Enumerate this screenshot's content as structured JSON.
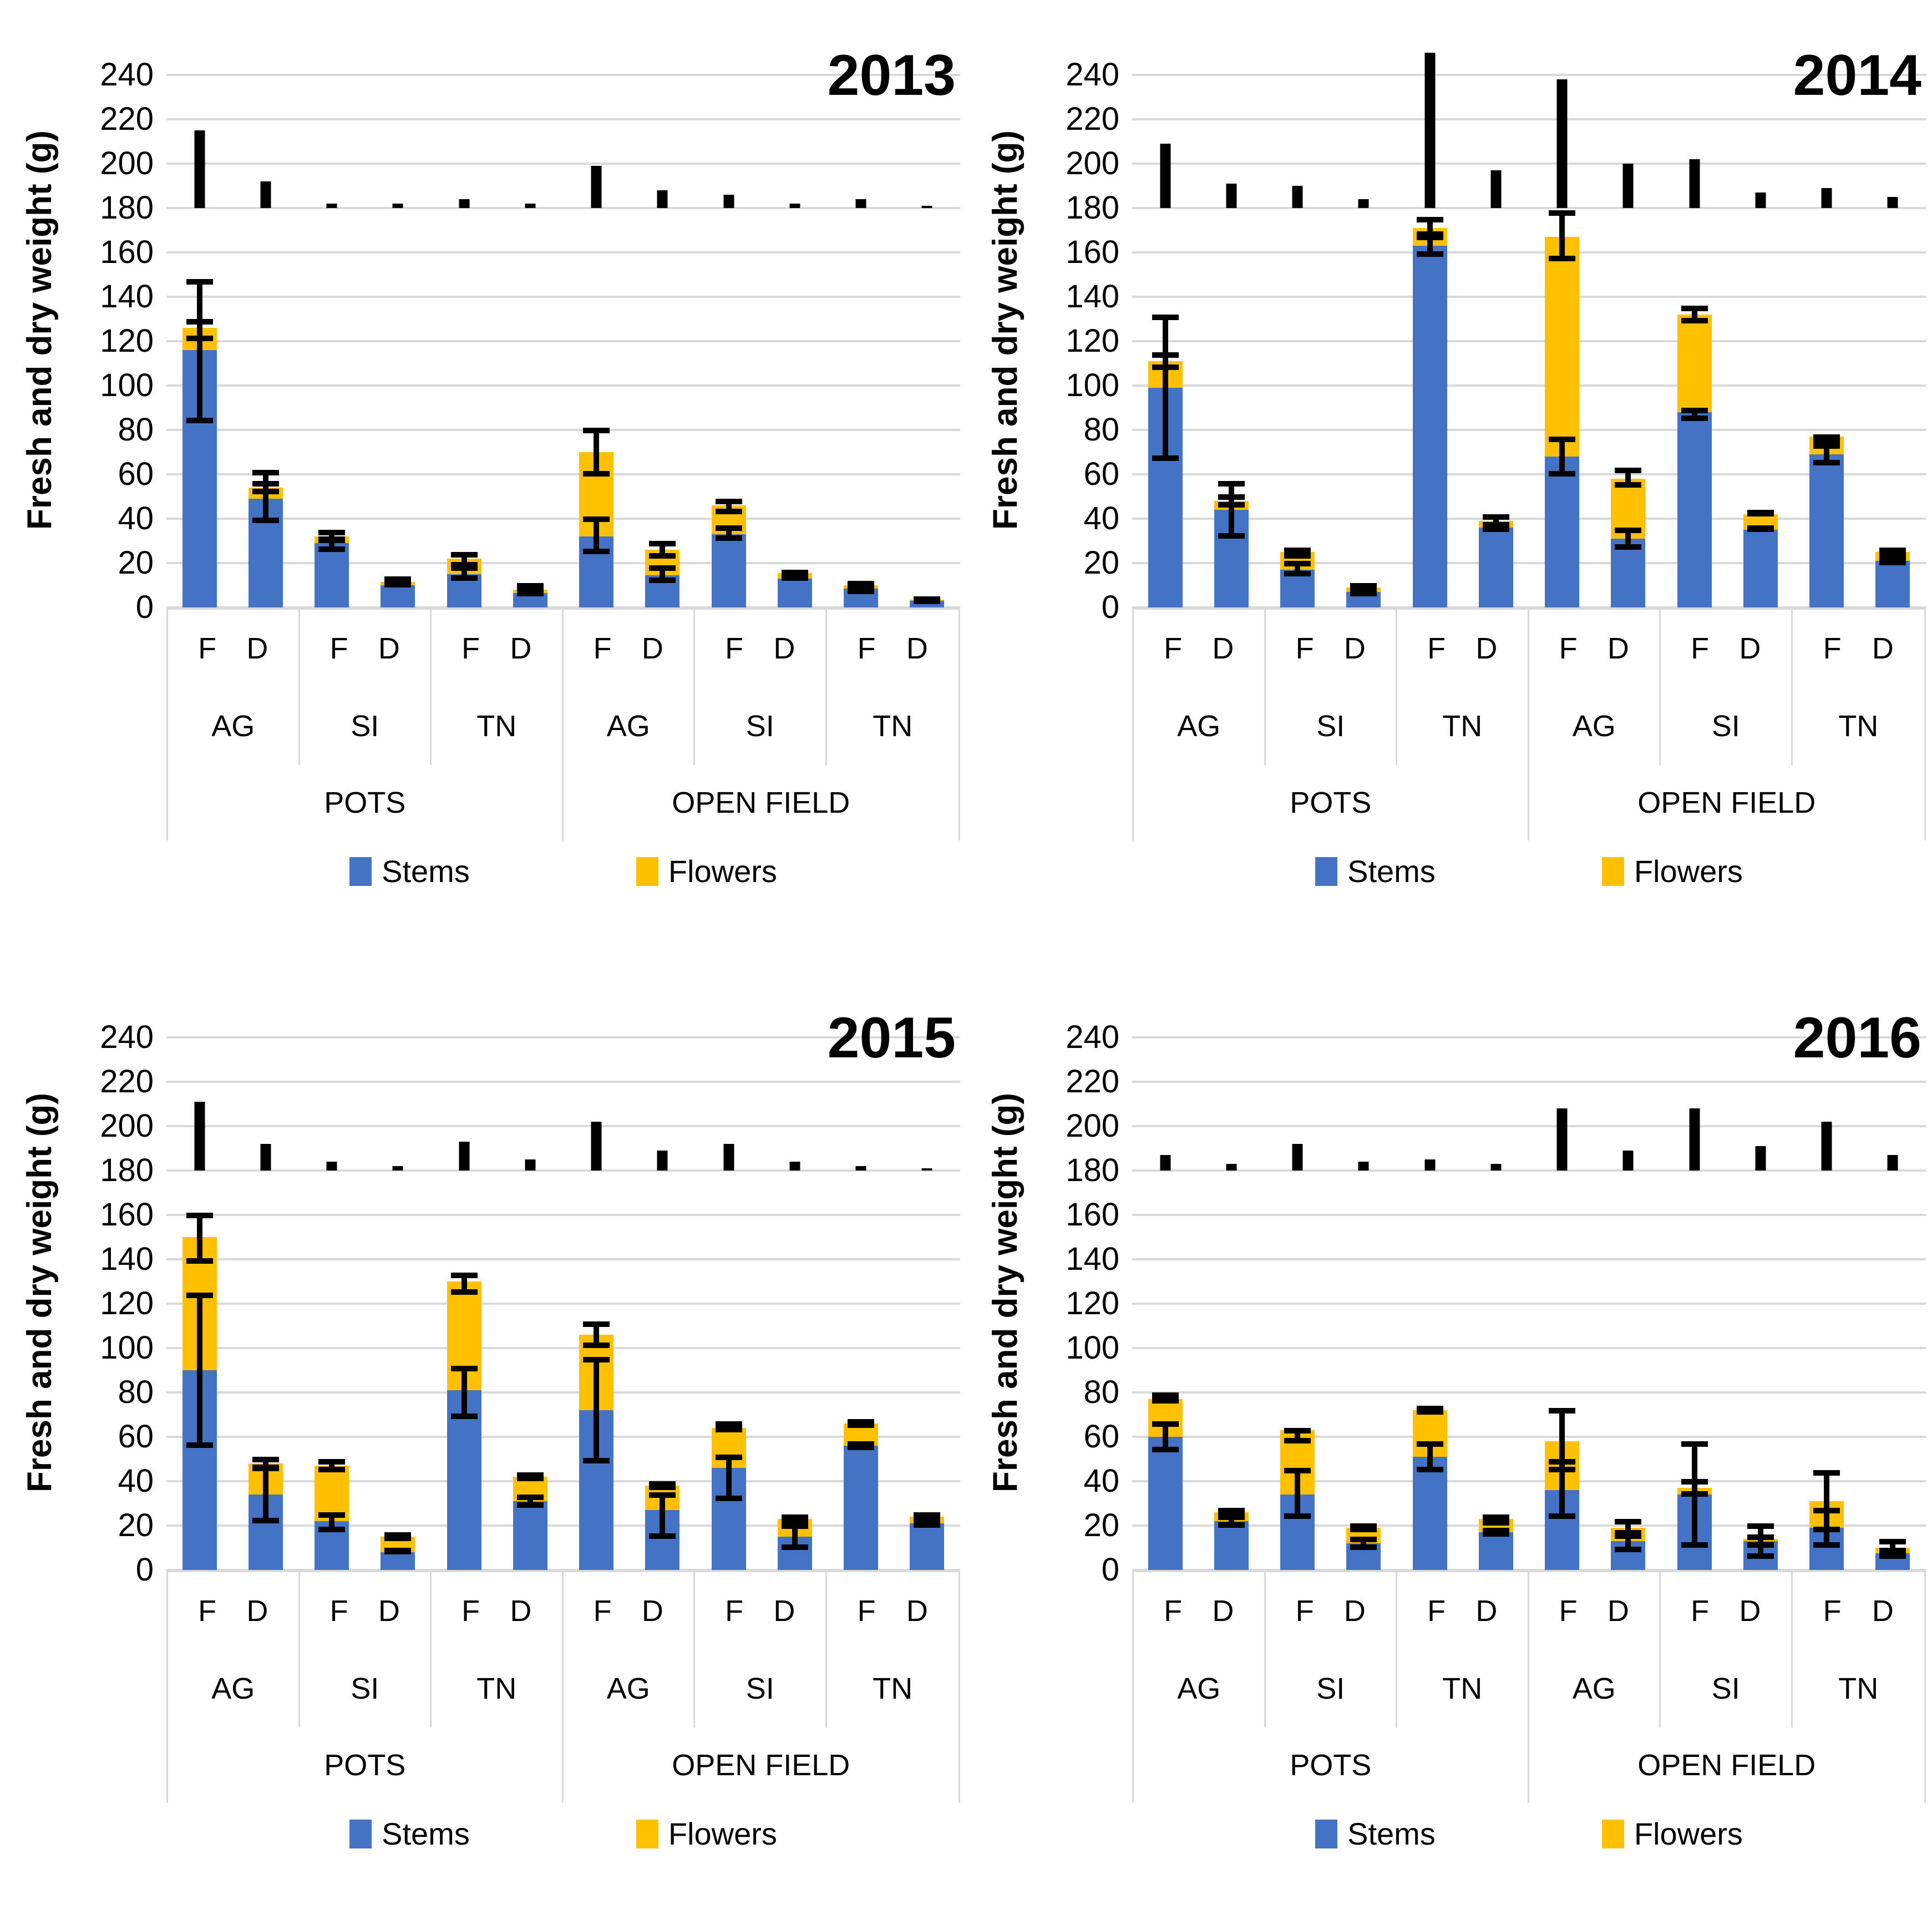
{
  "colors": {
    "stems": "#4472C4",
    "flowers": "#FFC000",
    "error_bar": "#000000",
    "marker": "#000000",
    "gridline": "#D9D9D9",
    "text": "#000000"
  },
  "y_axis": {
    "title": "Fresh and dry weight (g)",
    "min": 0,
    "max": 240,
    "step": 20,
    "plot_top_units": 250,
    "marker_baseline": 180
  },
  "x_axis": {
    "fd_labels": [
      "F",
      "D"
    ],
    "varieties": [
      "AG",
      "SI",
      "TN"
    ],
    "environments": [
      "POTS",
      "OPEN FIELD"
    ]
  },
  "legend": {
    "items": [
      {
        "label": "Stems",
        "color_key": "stems"
      },
      {
        "label": "Flowers",
        "color_key": "flowers"
      }
    ]
  },
  "chart_data": {
    "type": "bar",
    "subtype": "stacked-vertical-with-error-bars",
    "unit": "g",
    "series_names": [
      "Stems",
      "Flowers"
    ],
    "note_marker_series": "black tick marks rising from 180 g baseline above each bar",
    "panels": [
      {
        "year": "2013",
        "bars": [
          {
            "env": "POTS",
            "variety": "AG",
            "fd": "F",
            "stems": 116,
            "flowers": 10,
            "stems_err": [
              83,
              148
            ],
            "total_err": [
              120,
              130
            ],
            "marker": 215
          },
          {
            "env": "POTS",
            "variety": "AG",
            "fd": "D",
            "stems": 49,
            "flowers": 5,
            "stems_err": [
              38,
              62
            ],
            "total_err": [
              51,
              57
            ],
            "marker": 192
          },
          {
            "env": "POTS",
            "variety": "SI",
            "fd": "F",
            "stems": 29,
            "flowers": 3,
            "stems_err": [
              25,
              32
            ],
            "total_err": [
              29,
              35
            ],
            "marker": 182
          },
          {
            "env": "POTS",
            "variety": "SI",
            "fd": "D",
            "stems": 10,
            "flowers": 1.5,
            "stems_err": [
              9,
              12
            ],
            "total_err": [
              10,
              14
            ],
            "marker": 182
          },
          {
            "env": "POTS",
            "variety": "TN",
            "fd": "F",
            "stems": 15,
            "flowers": 7,
            "stems_err": [
              12,
              19
            ],
            "total_err": [
              18,
              25
            ],
            "marker": 184
          },
          {
            "env": "POTS",
            "variety": "TN",
            "fd": "D",
            "stems": 6.5,
            "flowers": 1.5,
            "stems_err": [
              5,
              9
            ],
            "total_err": [
              6,
              11
            ],
            "marker": 182
          },
          {
            "env": "OPEN FIELD",
            "variety": "AG",
            "fd": "F",
            "stems": 32,
            "flowers": 38,
            "stems_err": [
              24,
              41
            ],
            "total_err": [
              59,
              81
            ],
            "marker": 199
          },
          {
            "env": "OPEN FIELD",
            "variety": "AG",
            "fd": "D",
            "stems": 14.5,
            "flowers": 11.5,
            "stems_err": [
              11,
              19
            ],
            "total_err": [
              22,
              30
            ],
            "marker": 188
          },
          {
            "env": "OPEN FIELD",
            "variety": "SI",
            "fd": "F",
            "stems": 33,
            "flowers": 13,
            "stems_err": [
              30,
              37
            ],
            "total_err": [
              42,
              49
            ],
            "marker": 186
          },
          {
            "env": "OPEN FIELD",
            "variety": "SI",
            "fd": "D",
            "stems": 13,
            "flowers": 2.5,
            "stems_err": [
              12,
              15
            ],
            "total_err": [
              13,
              17
            ],
            "marker": 182
          },
          {
            "env": "OPEN FIELD",
            "variety": "TN",
            "fd": "F",
            "stems": 8.5,
            "flowers": 1.5,
            "stems_err": [
              7,
              10
            ],
            "total_err": [
              6,
              12
            ],
            "marker": 184
          },
          {
            "env": "OPEN FIELD",
            "variety": "TN",
            "fd": "D",
            "stems": 3,
            "flowers": 0.5,
            "stems_err": [
              2.5,
              4
            ],
            "total_err": [
              2.5,
              4.5
            ],
            "marker": 181
          }
        ]
      },
      {
        "year": "2014",
        "bars": [
          {
            "env": "POTS",
            "variety": "AG",
            "fd": "F",
            "stems": 99,
            "flowers": 12,
            "stems_err": [
              66,
              132
            ],
            "total_err": [
              107,
              115
            ],
            "marker": 209
          },
          {
            "env": "POTS",
            "variety": "AG",
            "fd": "D",
            "stems": 44,
            "flowers": 4,
            "stems_err": [
              31,
              57
            ],
            "total_err": [
              45,
              51
            ],
            "marker": 191
          },
          {
            "env": "POTS",
            "variety": "SI",
            "fd": "F",
            "stems": 17,
            "flowers": 8,
            "stems_err": [
              14,
              21
            ],
            "total_err": [
              22,
              27
            ],
            "marker": 190
          },
          {
            "env": "POTS",
            "variety": "SI",
            "fd": "D",
            "stems": 7,
            "flowers": 2,
            "stems_err": [
              5,
              9
            ],
            "total_err": [
              7,
              11
            ],
            "marker": 184
          },
          {
            "env": "POTS",
            "variety": "TN",
            "fd": "F",
            "stems": 163,
            "flowers": 8,
            "stems_err": [
              158,
              168
            ],
            "total_err": [
              167,
              176
            ],
            "marker": 250
          },
          {
            "env": "POTS",
            "variety": "TN",
            "fd": "D",
            "stems": 36,
            "flowers": 3,
            "stems_err": [
              34,
              38
            ],
            "total_err": [
              36,
              42
            ],
            "marker": 197
          },
          {
            "env": "OPEN FIELD",
            "variety": "AG",
            "fd": "F",
            "stems": 68,
            "flowers": 99,
            "stems_err": [
              59,
              77
            ],
            "total_err": [
              156,
              179
            ],
            "marker": 238
          },
          {
            "env": "OPEN FIELD",
            "variety": "AG",
            "fd": "D",
            "stems": 31,
            "flowers": 27,
            "stems_err": [
              26,
              36
            ],
            "total_err": [
              54,
              63
            ],
            "marker": 200
          },
          {
            "env": "OPEN FIELD",
            "variety": "SI",
            "fd": "F",
            "stems": 88,
            "flowers": 44,
            "stems_err": [
              84,
              90
            ],
            "total_err": [
              128,
              136
            ],
            "marker": 202
          },
          {
            "env": "OPEN FIELD",
            "variety": "SI",
            "fd": "D",
            "stems": 35,
            "flowers": 7,
            "stems_err": [
              34,
              37
            ],
            "total_err": [
              41,
              44
            ],
            "marker": 187
          },
          {
            "env": "OPEN FIELD",
            "variety": "TN",
            "fd": "F",
            "stems": 69,
            "flowers": 8,
            "stems_err": [
              64,
              74
            ],
            "total_err": [
              73,
              78
            ],
            "marker": 189
          },
          {
            "env": "OPEN FIELD",
            "variety": "TN",
            "fd": "D",
            "stems": 21,
            "flowers": 4,
            "stems_err": [
              19,
              22
            ],
            "total_err": [
              22,
              27
            ],
            "marker": 185
          }
        ]
      },
      {
        "year": "2015",
        "bars": [
          {
            "env": "POTS",
            "variety": "AG",
            "fd": "F",
            "stems": 90,
            "flowers": 60,
            "stems_err": [
              55,
              125
            ],
            "total_err": [
              138,
              161
            ],
            "marker": 211
          },
          {
            "env": "POTS",
            "variety": "AG",
            "fd": "D",
            "stems": 34,
            "flowers": 14,
            "stems_err": [
              21,
              47
            ],
            "total_err": [
              45,
              51
            ],
            "marker": 192
          },
          {
            "env": "POTS",
            "variety": "SI",
            "fd": "F",
            "stems": 22,
            "flowers": 25,
            "stems_err": [
              17,
              26
            ],
            "total_err": [
              44,
              50
            ],
            "marker": 184
          },
          {
            "env": "POTS",
            "variety": "SI",
            "fd": "D",
            "stems": 8,
            "flowers": 7,
            "stems_err": [
              7,
              10
            ],
            "total_err": [
              13,
              17
            ],
            "marker": 182
          },
          {
            "env": "POTS",
            "variety": "TN",
            "fd": "F",
            "stems": 81,
            "flowers": 49,
            "stems_err": [
              68,
              92
            ],
            "total_err": [
              124,
              134
            ],
            "marker": 193
          },
          {
            "env": "POTS",
            "variety": "TN",
            "fd": "D",
            "stems": 31,
            "flowers": 11,
            "stems_err": [
              28,
              34
            ],
            "total_err": [
              40,
              44
            ],
            "marker": 185
          },
          {
            "env": "OPEN FIELD",
            "variety": "AG",
            "fd": "F",
            "stems": 72,
            "flowers": 34,
            "stems_err": [
              48,
              96
            ],
            "total_err": [
              100,
              112
            ],
            "marker": 202
          },
          {
            "env": "OPEN FIELD",
            "variety": "AG",
            "fd": "D",
            "stems": 27,
            "flowers": 11,
            "stems_err": [
              14,
              35
            ],
            "total_err": [
              36,
              40
            ],
            "marker": 189
          },
          {
            "env": "OPEN FIELD",
            "variety": "SI",
            "fd": "F",
            "stems": 46,
            "flowers": 18,
            "stems_err": [
              31,
              52
            ],
            "total_err": [
              62,
              67
            ],
            "marker": 192
          },
          {
            "env": "OPEN FIELD",
            "variety": "SI",
            "fd": "D",
            "stems": 15,
            "flowers": 8,
            "stems_err": [
              9,
              21
            ],
            "total_err": [
              21,
              25
            ],
            "marker": 184
          },
          {
            "env": "OPEN FIELD",
            "variety": "TN",
            "fd": "F",
            "stems": 56,
            "flowers": 10,
            "stems_err": [
              54,
              58
            ],
            "total_err": [
              64,
              68
            ],
            "marker": 182
          },
          {
            "env": "OPEN FIELD",
            "variety": "TN",
            "fd": "D",
            "stems": 21,
            "flowers": 3,
            "stems_err": [
              19,
              22
            ],
            "total_err": [
              22,
              26
            ],
            "marker": 181
          }
        ]
      },
      {
        "year": "2016",
        "bars": [
          {
            "env": "POTS",
            "variety": "AG",
            "fd": "F",
            "stems": 60,
            "flowers": 17,
            "stems_err": [
              53,
              67
            ],
            "total_err": [
              75,
              80
            ],
            "marker": 187
          },
          {
            "env": "POTS",
            "variety": "AG",
            "fd": "D",
            "stems": 22,
            "flowers": 4,
            "stems_err": [
              19,
              25
            ],
            "total_err": [
              23,
              28
            ],
            "marker": 183
          },
          {
            "env": "POTS",
            "variety": "SI",
            "fd": "F",
            "stems": 34,
            "flowers": 29,
            "stems_err": [
              23,
              46
            ],
            "total_err": [
              57,
              64
            ],
            "marker": 192
          },
          {
            "env": "POTS",
            "variety": "SI",
            "fd": "D",
            "stems": 12,
            "flowers": 7,
            "stems_err": [
              9,
              15
            ],
            "total_err": [
              17,
              21
            ],
            "marker": 184
          },
          {
            "env": "POTS",
            "variety": "TN",
            "fd": "F",
            "stems": 51,
            "flowers": 21,
            "stems_err": [
              44,
              58
            ],
            "total_err": [
              70,
              74
            ],
            "marker": 185
          },
          {
            "env": "POTS",
            "variety": "TN",
            "fd": "D",
            "stems": 17,
            "flowers": 6,
            "stems_err": [
              15,
              19
            ],
            "total_err": [
              20,
              25
            ],
            "marker": 183
          },
          {
            "env": "OPEN FIELD",
            "variety": "AG",
            "fd": "F",
            "stems": 36,
            "flowers": 22,
            "stems_err": [
              23,
              50
            ],
            "total_err": [
              44,
              73
            ],
            "marker": 208
          },
          {
            "env": "OPEN FIELD",
            "variety": "AG",
            "fd": "D",
            "stems": 13,
            "flowers": 6,
            "stems_err": [
              8,
              18
            ],
            "total_err": [
              14,
              23
            ],
            "marker": 189
          },
          {
            "env": "OPEN FIELD",
            "variety": "SI",
            "fd": "F",
            "stems": 34,
            "flowers": 3,
            "stems_err": [
              10,
              58
            ],
            "total_err": [
              33,
              41
            ],
            "marker": 208
          },
          {
            "env": "OPEN FIELD",
            "variety": "SI",
            "fd": "D",
            "stems": 13,
            "flowers": 1,
            "stems_err": [
              10,
              16
            ],
            "total_err": [
              5,
              21
            ],
            "marker": 191
          },
          {
            "env": "OPEN FIELD",
            "variety": "TN",
            "fd": "F",
            "stems": 19,
            "flowers": 12,
            "stems_err": [
              10,
              28
            ],
            "total_err": [
              17,
              45
            ],
            "marker": 202
          },
          {
            "env": "OPEN FIELD",
            "variety": "TN",
            "fd": "D",
            "stems": 7.5,
            "flowers": 2.5,
            "stems_err": [
              5,
              10
            ],
            "total_err": [
              5,
              14
            ],
            "marker": 187
          }
        ]
      }
    ]
  }
}
